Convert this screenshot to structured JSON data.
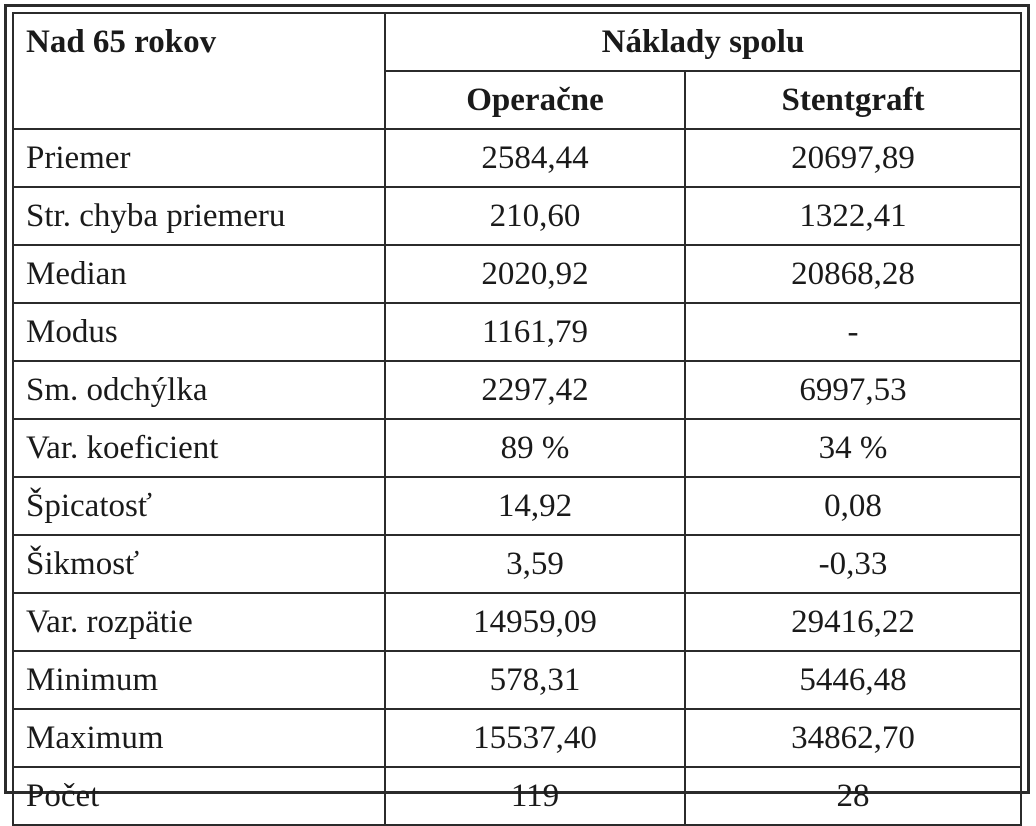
{
  "table": {
    "corner_label": "Nad 65 rokov",
    "group_header": "Náklady spolu",
    "columns": [
      "Operačne",
      "Stentgraft"
    ],
    "rows": [
      {
        "label": "Priemer",
        "values": [
          "2584,44",
          "20697,89"
        ]
      },
      {
        "label": "Str. chyba priemeru",
        "values": [
          "210,60",
          "1322,41"
        ]
      },
      {
        "label": "Median",
        "values": [
          "2020,92",
          "20868,28"
        ]
      },
      {
        "label": "Modus",
        "values": [
          "1161,79",
          "-"
        ]
      },
      {
        "label": "Sm. odchýlka",
        "values": [
          "2297,42",
          "6997,53"
        ]
      },
      {
        "label": "Var. koeficient",
        "values": [
          "89 %",
          "34 %"
        ]
      },
      {
        "label": "Špicatosť",
        "values": [
          "14,92",
          "0,08"
        ]
      },
      {
        "label": "Šikmosť",
        "values": [
          "3,59",
          "-0,33"
        ]
      },
      {
        "label": "Var. rozpätie",
        "values": [
          "14959,09",
          "29416,22"
        ]
      },
      {
        "label": "Minimum",
        "values": [
          "578,31",
          "5446,48"
        ]
      },
      {
        "label": "Maximum",
        "values": [
          "15537,40",
          "34862,70"
        ]
      },
      {
        "label": "Počet",
        "values": [
          "119",
          "28"
        ]
      }
    ]
  }
}
